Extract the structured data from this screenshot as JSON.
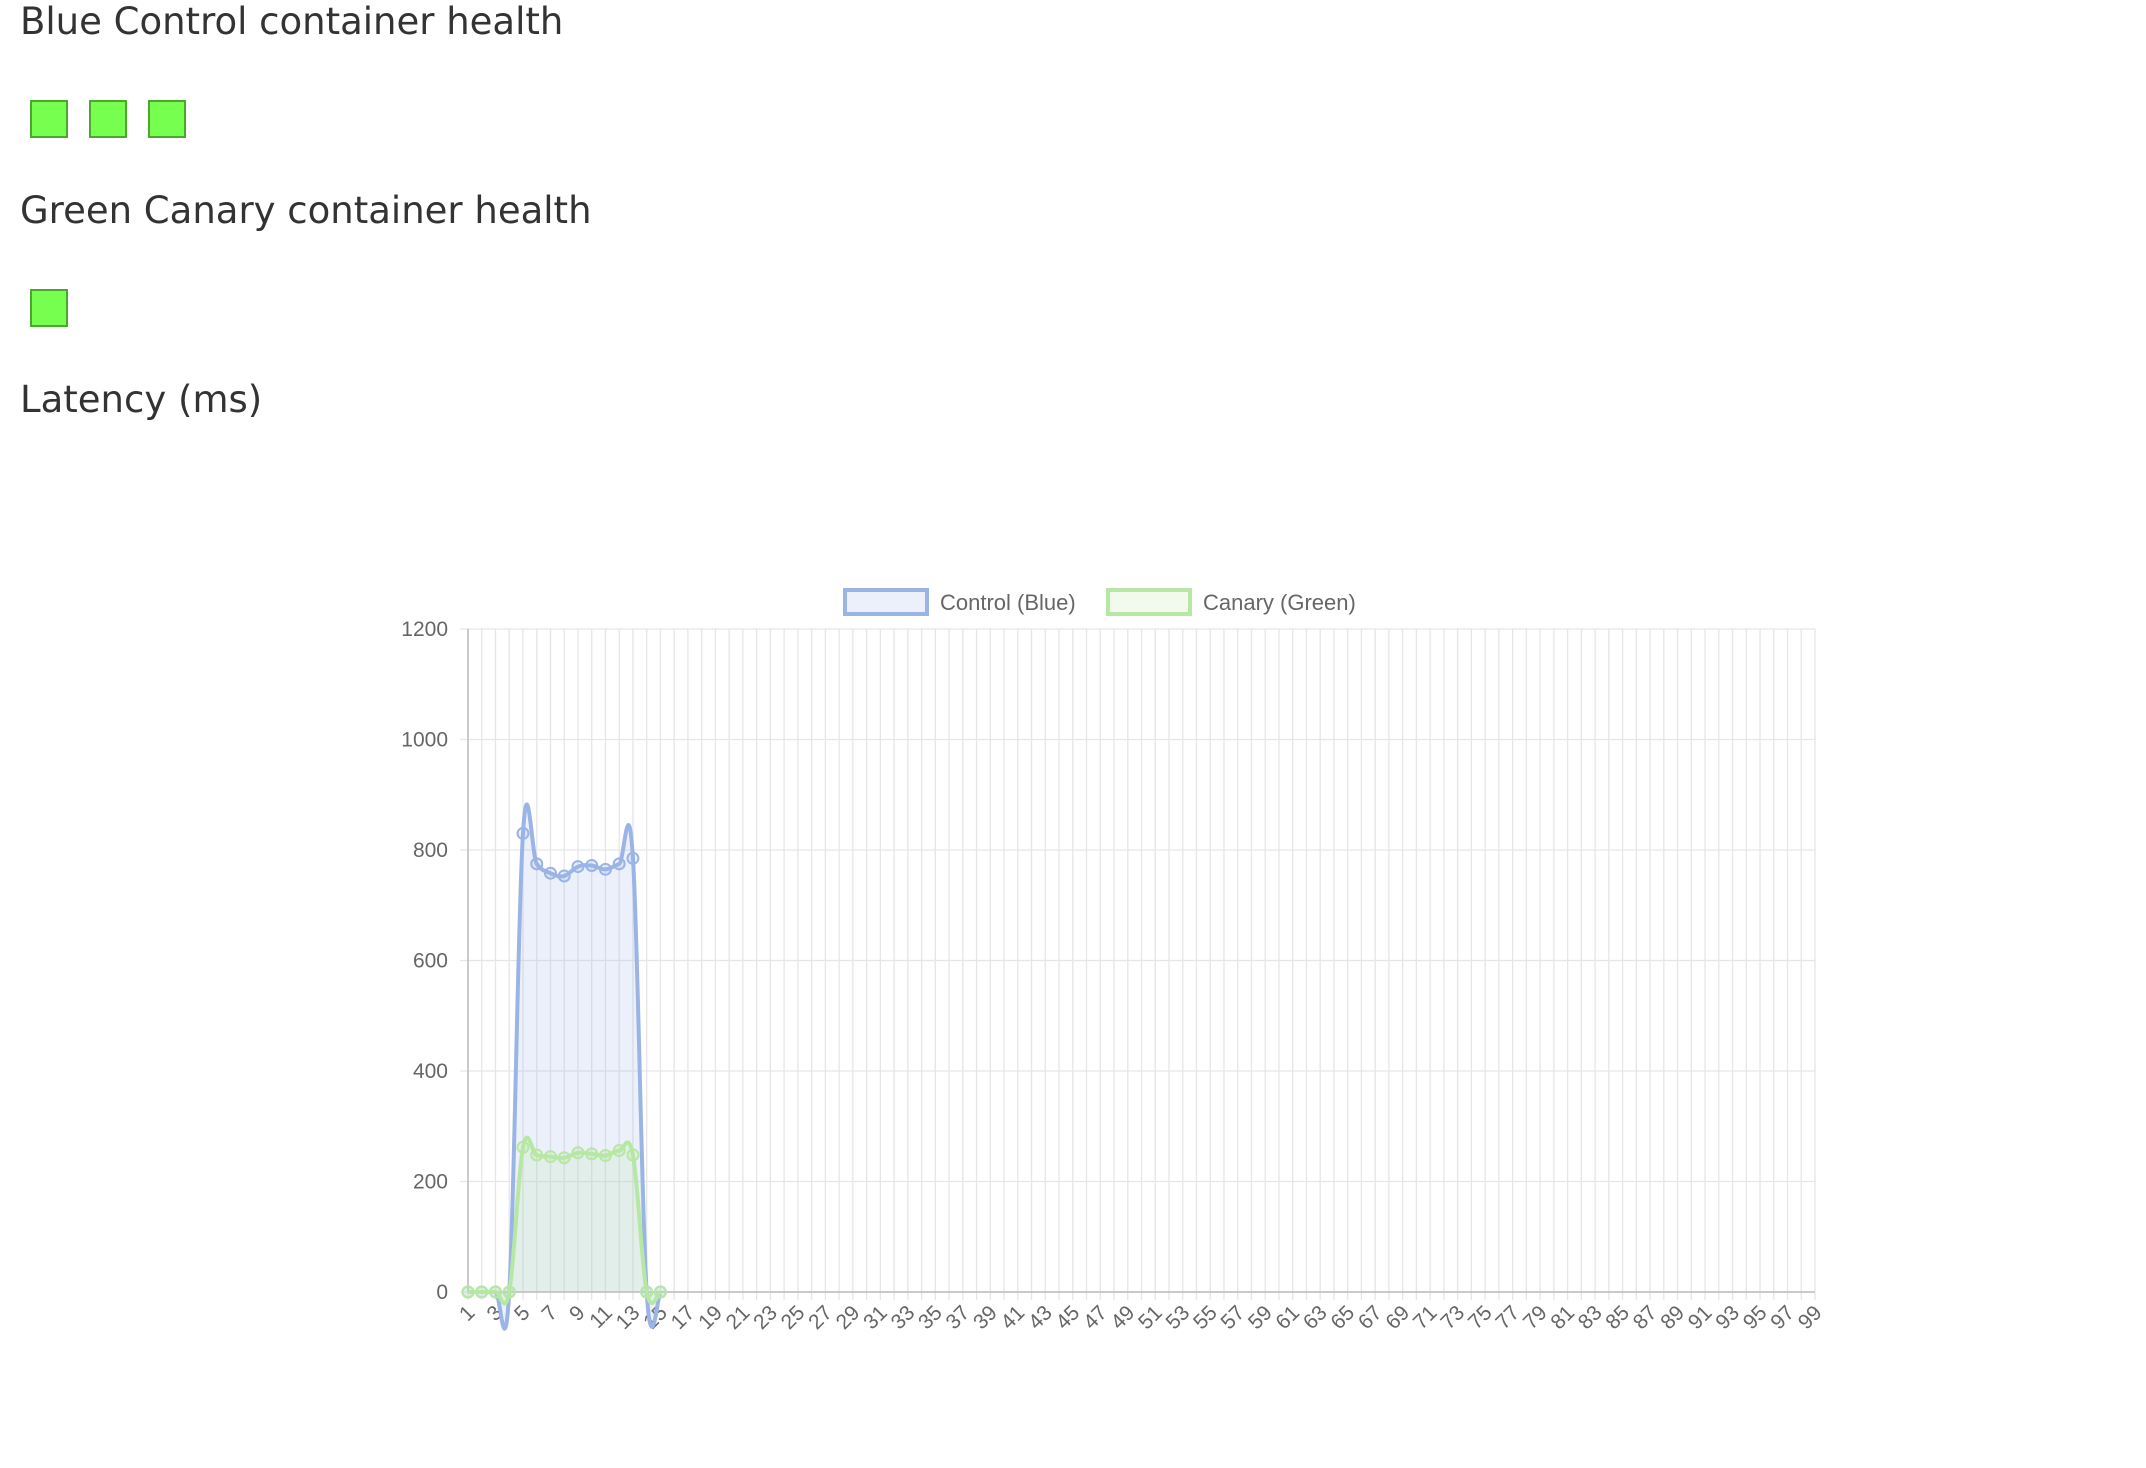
{
  "sections": {
    "blue_title": "Blue Control container health",
    "green_title": "Green Canary container health",
    "latency_title": "Latency (ms)"
  },
  "health": {
    "blue_containers": [
      "healthy",
      "healthy",
      "healthy"
    ],
    "green_containers": [
      "healthy"
    ],
    "healthy_color": "#77ff4f"
  },
  "chart_data": {
    "type": "line",
    "x_categories_from": 1,
    "x_categories_to": 99,
    "x_tick_labels": [
      "1",
      "3",
      "5",
      "7",
      "9",
      "11",
      "13",
      "15",
      "17",
      "19",
      "21",
      "23",
      "25",
      "27",
      "29",
      "31",
      "33",
      "35",
      "37",
      "39",
      "41",
      "43",
      "45",
      "47",
      "49",
      "51",
      "53",
      "55",
      "57",
      "59",
      "61",
      "63",
      "65",
      "67",
      "69",
      "71",
      "73",
      "75",
      "77",
      "79",
      "81",
      "83",
      "85",
      "87",
      "89",
      "91",
      "93",
      "95",
      "97",
      "99"
    ],
    "ylim": [
      0,
      1200
    ],
    "y_ticks": [
      0,
      200,
      400,
      600,
      800,
      1000,
      1200
    ],
    "grid": true,
    "legend_position": "top",
    "series": [
      {
        "name": "Control (Blue)",
        "color": "#9ab4e6",
        "fill": "rgba(154,180,230,0.2)",
        "x": [
          1,
          2,
          3,
          4,
          5,
          6,
          7,
          8,
          9,
          10,
          11,
          12,
          13,
          14,
          15
        ],
        "values": [
          0,
          0,
          0,
          0,
          830,
          775,
          758,
          753,
          770,
          772,
          765,
          775,
          785,
          0,
          0
        ]
      },
      {
        "name": "Canary (Green)",
        "color": "#b7e8a3",
        "fill": "rgba(183,232,163,0.2)",
        "x": [
          1,
          2,
          3,
          4,
          5,
          6,
          7,
          8,
          9,
          10,
          11,
          12,
          13,
          14,
          15
        ],
        "values": [
          0,
          0,
          0,
          0,
          262,
          248,
          245,
          243,
          252,
          250,
          247,
          256,
          248,
          0,
          0
        ]
      }
    ]
  }
}
